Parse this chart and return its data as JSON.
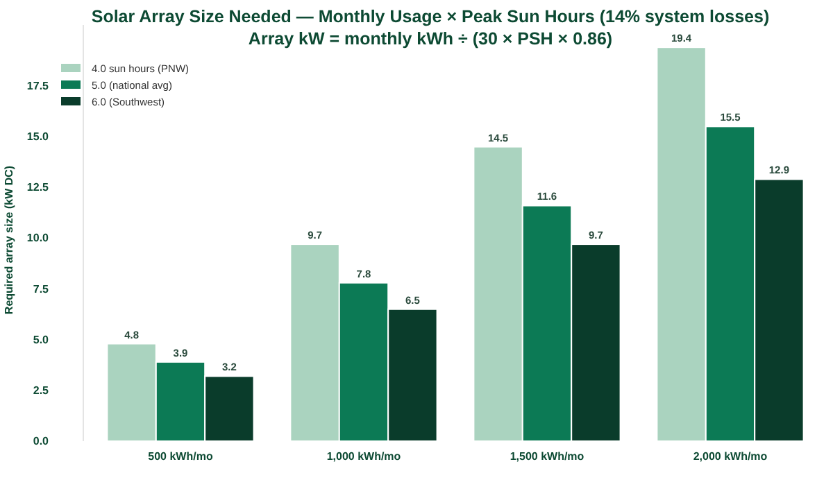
{
  "chart_data": {
    "type": "bar",
    "title": "Solar Array Size Needed — Monthly Usage × Peak Sun Hours (14% system losses)",
    "subtitle": "Array kW = monthly kWh ÷ (30 × PSH × 0.86)",
    "ylabel": "Required array size (kW DC)",
    "categories": [
      "500 kWh/mo",
      "1,000 kWh/mo",
      "1,500 kWh/mo",
      "2,000 kWh/mo"
    ],
    "series": [
      {
        "name": "4.0 sun hours (PNW)",
        "color": "#aad3bf",
        "values": [
          4.8,
          9.7,
          14.5,
          19.4
        ]
      },
      {
        "name": "5.0 (national avg)",
        "color": "#0c7a55",
        "values": [
          3.9,
          7.8,
          11.6,
          15.5
        ]
      },
      {
        "name": "6.0 (Southwest)",
        "color": "#0a3c2b",
        "values": [
          3.2,
          6.5,
          9.7,
          12.9
        ]
      }
    ],
    "ylim": [
      0,
      20.5
    ],
    "yticks": [
      {
        "value": 0,
        "label": "0.0"
      },
      {
        "value": 2.5,
        "label": "2.5"
      },
      {
        "value": 5,
        "label": "5.0"
      },
      {
        "value": 7.5,
        "label": "7.5"
      },
      {
        "value": 10,
        "label": "10.0"
      },
      {
        "value": 12.5,
        "label": "12.5"
      },
      {
        "value": 15,
        "label": "15.0"
      },
      {
        "value": 17.5,
        "label": "17.5"
      }
    ],
    "grid": false,
    "legend": "top left",
    "data_labels": true
  }
}
